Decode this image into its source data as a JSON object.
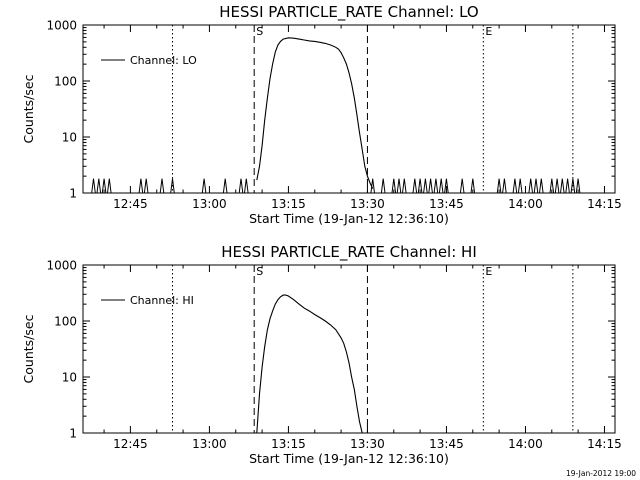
{
  "chart_data": [
    {
      "type": "line",
      "title": "HESSI PARTICLE_RATE Channel: LO",
      "xlabel": "Start Time (19-Jan-12 12:36:10)",
      "ylabel": "Counts/sec",
      "yscale": "log",
      "ylim": [
        1,
        1000
      ],
      "xlim": [
        "12:36",
        "14:17"
      ],
      "x_ticks": [
        "12:45",
        "13:00",
        "13:15",
        "13:30",
        "13:45",
        "14:00",
        "14:15"
      ],
      "y_ticks": [
        "1",
        "10",
        "100",
        "1000"
      ],
      "grid": false,
      "legend": {
        "position": "top-left",
        "entries": [
          "Channel: LO"
        ]
      },
      "markers": [
        {
          "label": "S",
          "time": "13:08.5",
          "style": "dashed"
        },
        {
          "time": "13:30",
          "style": "dashed"
        },
        {
          "label": "E",
          "time": "13:52",
          "style": "dotted"
        },
        {
          "time": "12:53",
          "style": "dotted"
        },
        {
          "time": "14:09",
          "style": "dotted"
        }
      ],
      "series": [
        {
          "name": "Channel: LO",
          "x": [
            "13:09",
            "13:09.5",
            "13:10",
            "13:10.5",
            "13:11",
            "13:11.5",
            "13:12",
            "13:12.5",
            "13:13",
            "13:13.5",
            "13:14",
            "13:15",
            "13:16",
            "13:17",
            "13:18",
            "13:19",
            "13:20",
            "13:21",
            "13:22",
            "13:23",
            "13:24",
            "13:24.5",
            "13:25",
            "13:25.5",
            "13:26",
            "13:26.5",
            "13:27",
            "13:27.5",
            "13:28",
            "13:28.5",
            "13:29",
            "13:29.5",
            "13:30",
            "13:30.5",
            "13:31"
          ],
          "y": [
            1.7,
            3,
            7,
            20,
            50,
            110,
            200,
            330,
            440,
            510,
            560,
            590,
            580,
            560,
            540,
            520,
            510,
            490,
            470,
            440,
            400,
            370,
            320,
            260,
            200,
            140,
            90,
            50,
            25,
            12,
            6,
            3,
            2,
            1.5,
            1.2
          ]
        }
      ],
      "noise_spikes": [
        "12:38",
        "12:39",
        "12:40",
        "12:41",
        "12:47",
        "12:48",
        "12:51",
        "12:53",
        "12:59",
        "13:03",
        "13:06",
        "13:07",
        "13:31",
        "13:33",
        "13:35",
        "13:36",
        "13:37",
        "13:39",
        "13:40",
        "13:41",
        "13:42",
        "13:43",
        "13:44",
        "13:45",
        "13:48",
        "13:50",
        "13:55",
        "13:56",
        "13:58",
        "13:59",
        "14:01",
        "14:02",
        "14:03",
        "14:05",
        "14:06",
        "14:07",
        "14:08",
        "14:09",
        "14:10"
      ]
    },
    {
      "type": "line",
      "title": "HESSI PARTICLE_RATE Channel: HI",
      "xlabel": "Start Time (19-Jan-12 12:36:10)",
      "ylabel": "Counts/sec",
      "yscale": "log",
      "ylim": [
        1,
        1000
      ],
      "xlim": [
        "12:36",
        "14:17"
      ],
      "x_ticks": [
        "12:45",
        "13:00",
        "13:15",
        "13:30",
        "13:45",
        "14:00",
        "14:15"
      ],
      "y_ticks": [
        "1",
        "10",
        "100",
        "1000"
      ],
      "grid": false,
      "legend": {
        "position": "top-left",
        "entries": [
          "Channel: HI"
        ]
      },
      "markers": [
        {
          "label": "S",
          "time": "13:08.5",
          "style": "dashed"
        },
        {
          "time": "13:30",
          "style": "dashed"
        },
        {
          "label": "E",
          "time": "13:52",
          "style": "dotted"
        },
        {
          "time": "12:53",
          "style": "dotted"
        },
        {
          "time": "14:09",
          "style": "dotted"
        }
      ],
      "series": [
        {
          "name": "Channel: HI",
          "x": [
            "13:09",
            "13:09.5",
            "13:10",
            "13:10.5",
            "13:11",
            "13:11.5",
            "13:12",
            "13:12.5",
            "13:13",
            "13:13.5",
            "13:14",
            "13:14.5",
            "13:15",
            "13:16",
            "13:17",
            "13:18",
            "13:19",
            "13:20",
            "13:21",
            "13:22",
            "13:23",
            "13:24",
            "13:25",
            "13:25.5",
            "13:26",
            "13:26.5",
            "13:27",
            "13:27.5",
            "13:28",
            "13:28.5",
            "13:29"
          ],
          "y": [
            1,
            5,
            15,
            35,
            70,
            110,
            150,
            200,
            240,
            270,
            290,
            290,
            280,
            240,
            200,
            170,
            150,
            130,
            115,
            100,
            85,
            70,
            50,
            40,
            28,
            18,
            10,
            6,
            3,
            1.6,
            1
          ]
        }
      ]
    }
  ],
  "stamp": "19-Jan-2012 19:00"
}
